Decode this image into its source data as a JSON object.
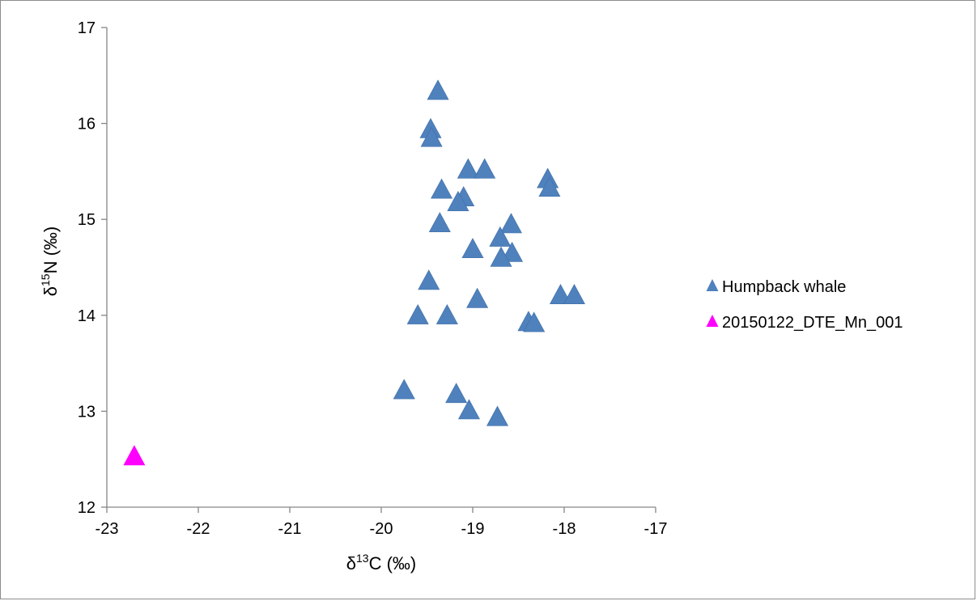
{
  "chart_data": {
    "type": "scatter",
    "title": "",
    "xlabel": "δ13C (‰)",
    "ylabel": "δ15N (‰)",
    "xlabel_parts": {
      "pre": "δ",
      "sup": "13",
      "post": "C (‰)"
    },
    "ylabel_parts": {
      "pre": "δ",
      "sup": "15",
      "post": "N (‰)"
    },
    "xlim": [
      -23,
      -17
    ],
    "ylim": [
      12,
      17
    ],
    "xticks": [
      -23,
      -22,
      -21,
      -20,
      -19,
      -18,
      -17
    ],
    "yticks": [
      12,
      13,
      14,
      15,
      16,
      17
    ],
    "xtick_labels": [
      "-23",
      "-22",
      "-21",
      "-20",
      "-19",
      "-18",
      "-17"
    ],
    "ytick_labels": [
      "12",
      "13",
      "14",
      "15",
      "16",
      "17"
    ],
    "grid": false,
    "legend_position": "right",
    "series": [
      {
        "name": "Humpback whale",
        "color": "#4f81bd",
        "marker": "triangle-icon",
        "points": [
          {
            "x": -19.38,
            "y": 16.33
          },
          {
            "x": -19.46,
            "y": 15.93
          },
          {
            "x": -19.45,
            "y": 15.84
          },
          {
            "x": -19.05,
            "y": 15.51
          },
          {
            "x": -18.87,
            "y": 15.51
          },
          {
            "x": -18.18,
            "y": 15.41
          },
          {
            "x": -18.16,
            "y": 15.32
          },
          {
            "x": -19.34,
            "y": 15.3
          },
          {
            "x": -19.1,
            "y": 15.22
          },
          {
            "x": -19.16,
            "y": 15.17
          },
          {
            "x": -19.36,
            "y": 14.95
          },
          {
            "x": -18.58,
            "y": 14.94
          },
          {
            "x": -18.7,
            "y": 14.8
          },
          {
            "x": -19.0,
            "y": 14.68
          },
          {
            "x": -18.57,
            "y": 14.64
          },
          {
            "x": -18.69,
            "y": 14.59
          },
          {
            "x": -19.48,
            "y": 14.35
          },
          {
            "x": -18.04,
            "y": 14.2
          },
          {
            "x": -17.89,
            "y": 14.2
          },
          {
            "x": -18.95,
            "y": 14.16
          },
          {
            "x": -19.6,
            "y": 13.99
          },
          {
            "x": -19.28,
            "y": 13.99
          },
          {
            "x": -18.39,
            "y": 13.92
          },
          {
            "x": -18.33,
            "y": 13.91
          },
          {
            "x": -19.75,
            "y": 13.21
          },
          {
            "x": -19.18,
            "y": 13.17
          },
          {
            "x": -19.04,
            "y": 13.0
          },
          {
            "x": -18.73,
            "y": 12.93
          }
        ]
      },
      {
        "name": "20150122_DTE_Mn_001",
        "color": "#ff00ff",
        "marker": "triangle-icon",
        "points": [
          {
            "x": -22.7,
            "y": 12.52
          }
        ]
      }
    ]
  }
}
